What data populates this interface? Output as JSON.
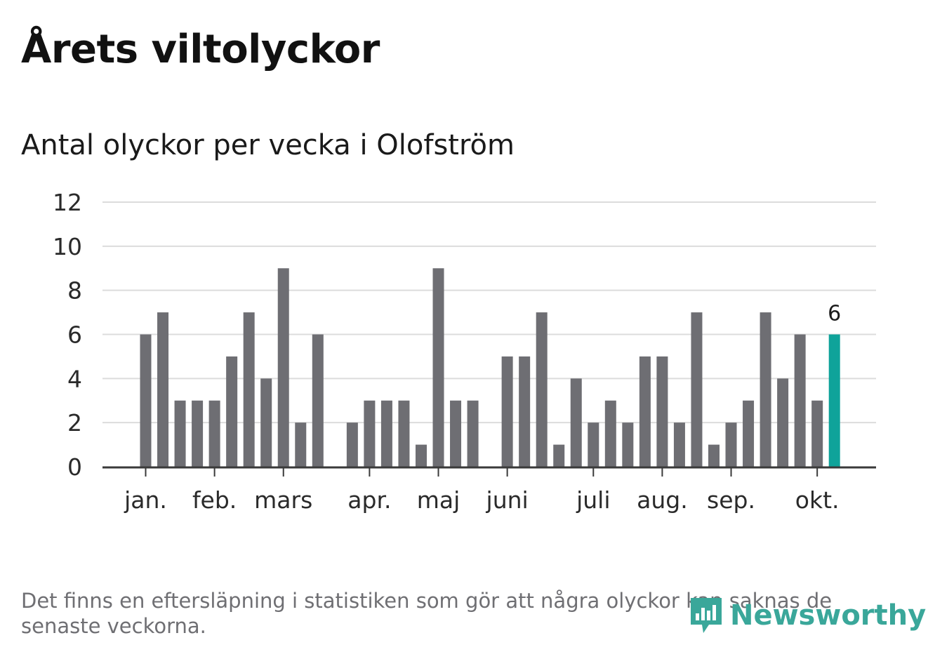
{
  "title": "Årets viltolyckor",
  "chart_data": {
    "type": "bar",
    "title": "Antal olyckor per vecka i Olofström",
    "xlabel": "",
    "ylabel": "",
    "ylim": [
      0,
      12
    ],
    "yticks": [
      0,
      2,
      4,
      6,
      8,
      10,
      12
    ],
    "grid": true,
    "month_labels": [
      {
        "label": "jan.",
        "week": 1
      },
      {
        "label": "feb.",
        "week": 5
      },
      {
        "label": "mars",
        "week": 9
      },
      {
        "label": "apr.",
        "week": 14
      },
      {
        "label": "maj",
        "week": 18
      },
      {
        "label": "juni",
        "week": 22
      },
      {
        "label": "juli",
        "week": 27
      },
      {
        "label": "aug.",
        "week": 31
      },
      {
        "label": "sep.",
        "week": 35
      },
      {
        "label": "okt.",
        "week": 40
      }
    ],
    "weeks": [
      1,
      2,
      3,
      4,
      5,
      6,
      7,
      8,
      9,
      10,
      11,
      12,
      13,
      14,
      15,
      16,
      17,
      18,
      19,
      20,
      21,
      22,
      23,
      24,
      25,
      26,
      27,
      28,
      29,
      30,
      31,
      32,
      33,
      34,
      35,
      36,
      37,
      38,
      39,
      40,
      41
    ],
    "values": [
      6,
      7,
      3,
      3,
      3,
      5,
      7,
      4,
      9,
      2,
      6,
      0,
      2,
      3,
      3,
      3,
      1,
      9,
      3,
      3,
      0,
      5,
      5,
      7,
      1,
      4,
      2,
      3,
      2,
      5,
      5,
      2,
      7,
      1,
      2,
      3,
      7,
      4,
      6,
      3,
      6
    ],
    "highlight_index": 40,
    "highlight_label": "6",
    "bar_color": "#6e6e73",
    "highlight_color": "#0fa39a"
  },
  "footnote": "Det finns en eftersläpning i statistiken som gör att några olyckor kan saknas de senaste veckorna.",
  "brand": {
    "name": "Newsworthy",
    "icon": "newsworthy-logo-icon",
    "color": "#3aa79a"
  }
}
